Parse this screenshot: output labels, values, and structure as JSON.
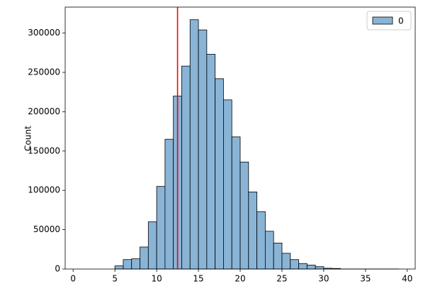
{
  "chart_data": {
    "type": "histogram",
    "ylabel": "Count",
    "bins": [
      1,
      2,
      3,
      4,
      5,
      6,
      7,
      8,
      9,
      10,
      11,
      12,
      13,
      14,
      15,
      16,
      17,
      18,
      19,
      20,
      21,
      22,
      23,
      24,
      25,
      26,
      27,
      28,
      29,
      30,
      31,
      32,
      33,
      34,
      35,
      36,
      37,
      38,
      39
    ],
    "series": [
      {
        "name": "0",
        "color": "#89b4d6",
        "values": [
          0,
          0,
          0,
          0,
          4000,
          12000,
          13000,
          28000,
          60000,
          105000,
          165000,
          220000,
          258000,
          317000,
          304000,
          273000,
          242000,
          215000,
          168000,
          136000,
          98000,
          73000,
          48000,
          33000,
          20000,
          12000,
          7000,
          5000,
          3000,
          1000,
          700,
          100,
          100,
          100,
          100,
          100,
          100,
          100
        ]
      }
    ],
    "vline": {
      "value": 12.5,
      "color": "#ff0000"
    },
    "xlim": [
      -0.95,
      40.95
    ],
    "ylim": [
      0,
      333000
    ],
    "xticks": [
      0,
      5,
      10,
      15,
      20,
      25,
      30,
      35,
      40
    ],
    "yticks": [
      0,
      50000,
      100000,
      150000,
      200000,
      250000,
      300000
    ],
    "legend": "upper right"
  }
}
